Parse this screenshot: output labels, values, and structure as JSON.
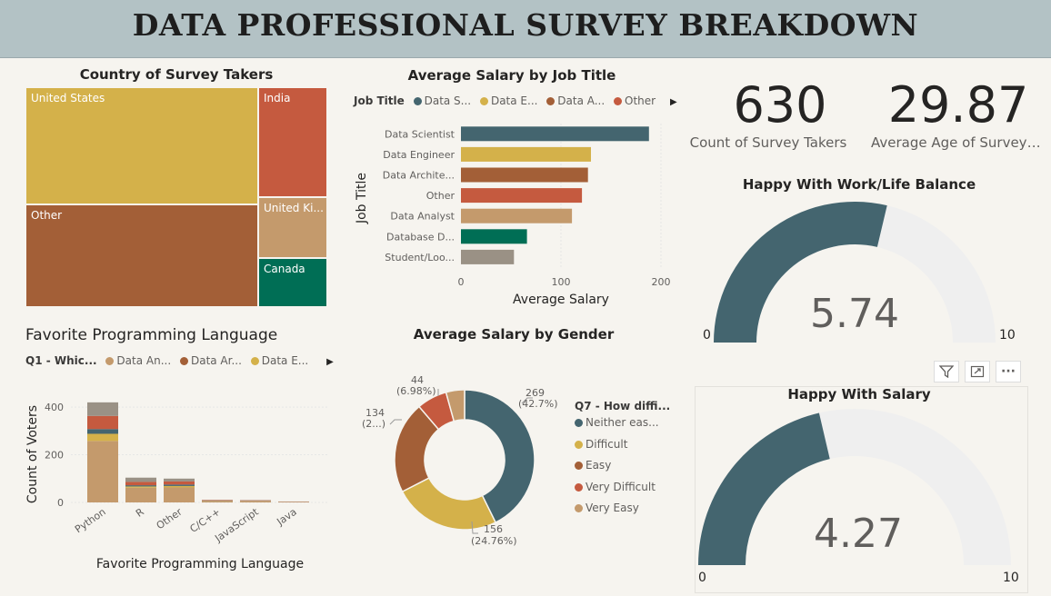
{
  "header": {
    "title": "DATA PROFESSIONAL SURVEY BREAKDOWN"
  },
  "kpis": {
    "count": {
      "value": "630",
      "label": "Count of Survey Takers"
    },
    "age": {
      "value": "29.87",
      "label": "Average Age of Survey ..."
    }
  },
  "visual_header": {
    "filter_icon": "filter-icon",
    "focus_icon": "focus-mode-icon",
    "more_icon": "more-options-icon"
  },
  "chart_data": [
    {
      "type": "treemap",
      "title": "Country of Survey Takers",
      "items": [
        {
          "label": "United States",
          "color": "#d4b14a"
        },
        {
          "label": "Other",
          "color": "#a35f37"
        },
        {
          "label": "India",
          "color": "#c55a3f"
        },
        {
          "label": "United Ki...",
          "color": "#c49a6c"
        },
        {
          "label": "Canada",
          "color": "#006e55"
        }
      ]
    },
    {
      "type": "bar",
      "orientation": "horizontal",
      "title": "Average Salary by Job Title",
      "xlabel": "Average Salary",
      "ylabel": "Job Title",
      "xlim": [
        0,
        200
      ],
      "xticks": [
        "0",
        "100",
        "200"
      ],
      "legend_title": "Job Title",
      "legend": [
        {
          "name": "Data S...",
          "color": "#44656f"
        },
        {
          "name": "Data E...",
          "color": "#d4b14a"
        },
        {
          "name": "Data A...",
          "color": "#a35f37"
        },
        {
          "name": "Other",
          "color": "#c55a3f"
        }
      ],
      "categories": [
        "Data Scientist",
        "Data Engineer",
        "Data Archite...",
        "Other",
        "Data Analyst",
        "Database D...",
        "Student/Loo..."
      ],
      "values": [
        188,
        130,
        127,
        121,
        111,
        66,
        53
      ],
      "colors": [
        "#44656f",
        "#d4b14a",
        "#a35f37",
        "#c55a3f",
        "#c49a6c",
        "#006e55",
        "#9a9185"
      ]
    },
    {
      "type": "bar",
      "stacked": true,
      "title": "Favorite Programming Language",
      "xlabel": "Favorite Programming Language",
      "ylabel": "Count of Voters",
      "ylim": [
        0,
        450
      ],
      "yticks": [
        "0",
        "200",
        "400"
      ],
      "legend_title": "Q1 - Whic...",
      "legend": [
        {
          "name": "Data An...",
          "color": "#c49a6c"
        },
        {
          "name": "Data Ar...",
          "color": "#a35f37"
        },
        {
          "name": "Data E...",
          "color": "#d4b14a"
        }
      ],
      "categories": [
        "Python",
        "R",
        "Other",
        "C/C++",
        "JavaScript",
        "Java"
      ],
      "series": [
        {
          "color": "#c49a6c",
          "values": [
            258,
            62,
            63,
            6,
            5,
            2
          ]
        },
        {
          "color": "#d4b14a",
          "values": [
            30,
            5,
            6,
            1,
            1,
            0
          ]
        },
        {
          "color": "#44656f",
          "values": [
            20,
            5,
            6,
            1,
            1,
            0
          ]
        },
        {
          "color": "#c55a3f",
          "values": [
            55,
            14,
            13,
            2,
            2,
            1
          ]
        },
        {
          "color": "#9a9185",
          "values": [
            57,
            18,
            12,
            1,
            1,
            1
          ]
        }
      ]
    },
    {
      "type": "pie",
      "donut": true,
      "title": "Average Salary by Gender",
      "legend_title": "Q7 - How diffi...",
      "slices": [
        {
          "name": "Neither eas...",
          "value": 269,
          "label": "269",
          "pct": "(42.7%)",
          "color": "#44656f"
        },
        {
          "name": "Difficult",
          "value": 156,
          "label": "156",
          "pct": "(24.76%)",
          "color": "#d4b14a"
        },
        {
          "name": "Easy",
          "value": 134,
          "label": "134",
          "pct": "(2...)",
          "color": "#a35f37"
        },
        {
          "name": "Very Difficult",
          "value": 44,
          "label": "44",
          "pct": "(6.98%)",
          "color": "#c55a3f"
        },
        {
          "name": "Very Easy",
          "value": 27,
          "label": "",
          "pct": "",
          "color": "#c49a6c"
        }
      ]
    },
    {
      "type": "gauge",
      "title": "Happy With Work/Life Balance",
      "value": 5.74,
      "value_label": "5.74",
      "min": 0,
      "max": 10,
      "min_label": "0",
      "max_label": "10",
      "fill_color": "#44656f",
      "track_color": "#efefef"
    },
    {
      "type": "gauge",
      "title": "Happy With Salary",
      "value": 4.27,
      "value_label": "4.27",
      "min": 0,
      "max": 10,
      "min_label": "0",
      "max_label": "10",
      "fill_color": "#44656f",
      "track_color": "#efefef"
    }
  ]
}
